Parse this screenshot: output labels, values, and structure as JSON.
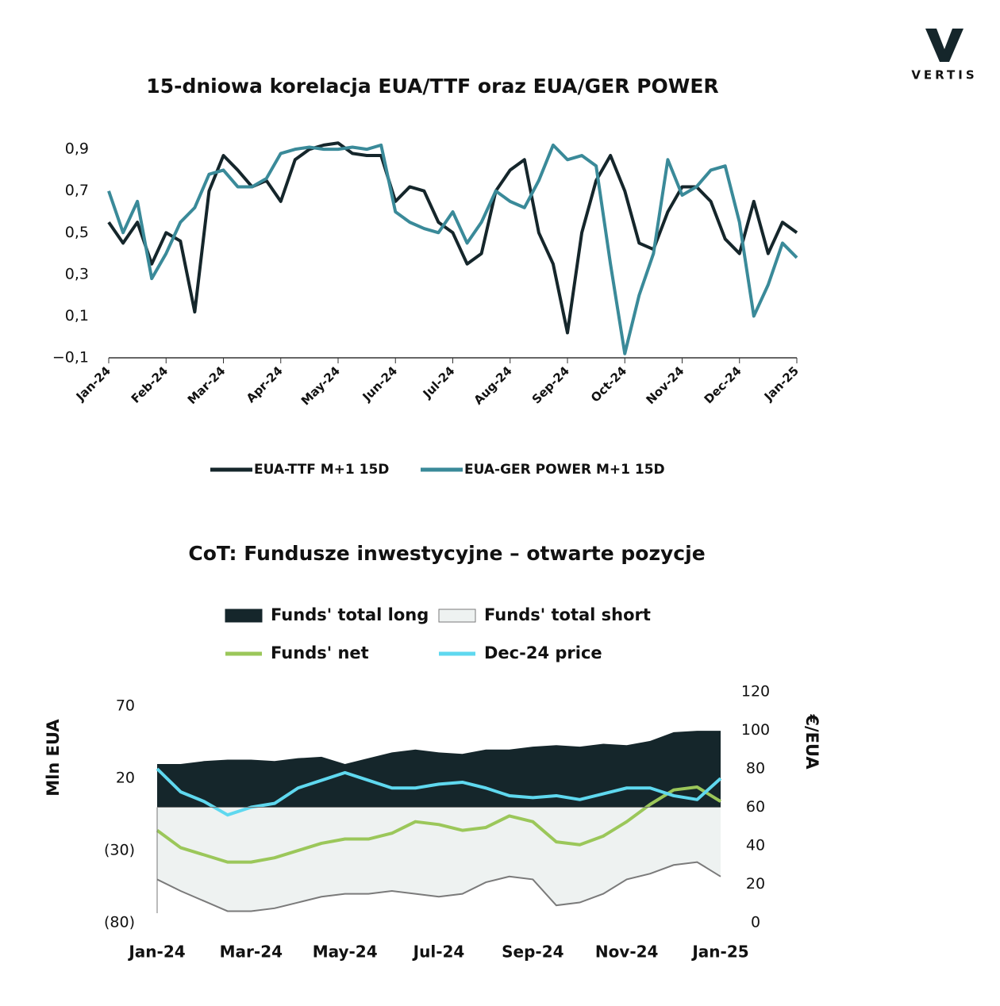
{
  "logo": "VERTIS",
  "chart_data": [
    {
      "type": "line",
      "title": "15-dniowa korelacja EUA/TTF oraz EUA/GER POWER",
      "categories": [
        "Jan-24",
        null,
        null,
        null,
        "Feb-24",
        null,
        null,
        null,
        "Mar-24",
        null,
        null,
        null,
        "Apr-24",
        null,
        null,
        null,
        "May-24",
        null,
        null,
        null,
        "Jun-24",
        null,
        null,
        null,
        "Jul-24",
        null,
        null,
        null,
        "Aug-24",
        null,
        null,
        null,
        "Sep-24",
        null,
        null,
        null,
        "Oct-24",
        null,
        null,
        null,
        "Nov-24",
        null,
        null,
        null,
        "Dec-24",
        null,
        null,
        null,
        "Jan-25"
      ],
      "series": [
        {
          "name": "EUA-TTF M+1 15D",
          "color": "#15262b",
          "values": [
            0.55,
            0.45,
            0.55,
            0.35,
            0.5,
            0.46,
            0.12,
            0.7,
            0.87,
            0.8,
            0.72,
            0.75,
            0.65,
            0.85,
            0.9,
            0.92,
            0.93,
            0.88,
            0.87,
            0.87,
            0.65,
            0.72,
            0.7,
            0.55,
            0.5,
            0.35,
            0.4,
            0.7,
            0.8,
            0.85,
            0.5,
            0.35,
            0.02,
            0.5,
            0.75,
            0.87,
            0.7,
            0.45,
            0.42,
            0.6,
            0.72,
            0.72,
            0.65,
            0.47,
            0.4,
            0.65,
            0.4,
            0.55,
            0.5
          ]
        },
        {
          "name": "EUA-GER POWER M+1 15D",
          "color": "#3a8a99",
          "values": [
            0.7,
            0.5,
            0.65,
            0.28,
            0.4,
            0.55,
            0.62,
            0.78,
            0.8,
            0.72,
            0.72,
            0.76,
            0.88,
            0.9,
            0.91,
            0.9,
            0.9,
            0.91,
            0.9,
            0.92,
            0.6,
            0.55,
            0.52,
            0.5,
            0.6,
            0.45,
            0.55,
            0.7,
            0.65,
            0.62,
            0.75,
            0.92,
            0.85,
            0.87,
            0.82,
            0.35,
            -0.08,
            0.2,
            0.4,
            0.85,
            0.68,
            0.72,
            0.8,
            0.82,
            0.55,
            0.1,
            0.25,
            0.45,
            0.38
          ]
        }
      ],
      "ylim": [
        -0.1,
        0.95
      ],
      "yticks": [
        {
          "value": -0.1,
          "label": "−0,1"
        },
        {
          "value": 0.1,
          "label": "0,1"
        },
        {
          "value": 0.3,
          "label": "0,3"
        },
        {
          "value": 0.5,
          "label": "0,5"
        },
        {
          "value": 0.7,
          "label": "0,7"
        },
        {
          "value": 0.9,
          "label": "0,9"
        }
      ],
      "grid": false
    },
    {
      "type": "area",
      "title": "CoT: Fundusze inwestycyjne – otwarte pozycje",
      "y_label": "Mln EUA",
      "y2_label": "€/EUA",
      "categories": [
        "Jan-24",
        null,
        null,
        null,
        "Mar-24",
        null,
        null,
        null,
        "May-24",
        null,
        null,
        null,
        "Jul-24",
        null,
        null,
        null,
        "Sep-24",
        null,
        null,
        null,
        "Nov-24",
        null,
        null,
        null,
        "Jan-25"
      ],
      "series": [
        {
          "name": "Funds' total long",
          "type": "area",
          "color": "#15262b",
          "values": [
            30,
            30,
            32,
            33,
            33,
            32,
            34,
            35,
            30,
            34,
            38,
            40,
            38,
            37,
            40,
            40,
            42,
            43,
            42,
            44,
            43,
            46,
            52,
            53,
            53
          ]
        },
        {
          "name": "Funds' total short",
          "type": "area",
          "color": "#eef2f1",
          "edge": "#7a7a7a",
          "values": [
            -50,
            -58,
            -65,
            -72,
            -72,
            -70,
            -66,
            -62,
            -60,
            -60,
            -58,
            -60,
            -62,
            -60,
            -52,
            -48,
            -50,
            -68,
            -66,
            -60,
            -50,
            -46,
            -40,
            -38,
            -48
          ]
        },
        {
          "name": "Funds' net",
          "type": "line",
          "color": "#9bc75a",
          "values": [
            -16,
            -28,
            -33,
            -38,
            -38,
            -35,
            -30,
            -25,
            -22,
            -22,
            -18,
            -10,
            -12,
            -16,
            -14,
            -6,
            -10,
            -24,
            -26,
            -20,
            -10,
            2,
            12,
            14,
            4
          ]
        },
        {
          "name": "Dec-24 price",
          "type": "line",
          "axis": "y2",
          "color": "#5fd8ef",
          "values": [
            80,
            68,
            63,
            56,
            60,
            62,
            70,
            74,
            78,
            74,
            70,
            70,
            72,
            73,
            70,
            66,
            65,
            66,
            64,
            67,
            70,
            70,
            66,
            64,
            75
          ]
        }
      ],
      "ylim": [
        -80,
        80
      ],
      "yticks": [
        {
          "value": -80,
          "label": "(80)"
        },
        {
          "value": -30,
          "label": "(30)"
        },
        20,
        70
      ],
      "y2lim": [
        0,
        120
      ],
      "y2ticks": [
        0,
        20,
        40,
        60,
        80,
        100,
        120
      ]
    }
  ]
}
